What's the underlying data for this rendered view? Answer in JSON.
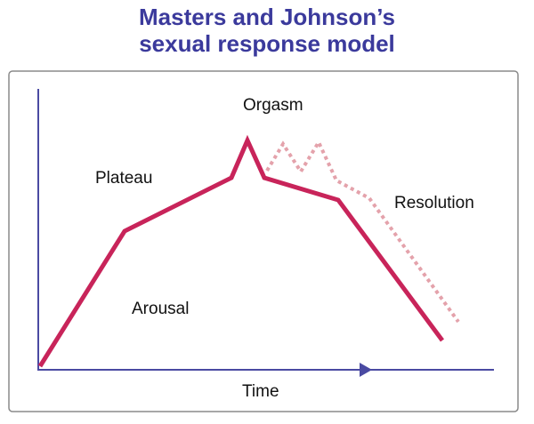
{
  "title_lines": [
    "Masters and Johnson’s",
    "sexual response model"
  ],
  "labels": {
    "orgasm": "Orgasm",
    "plateau": "Plateau",
    "resolution": "Resolution",
    "arousal": "Arousal",
    "x_axis": "Time"
  }
}
